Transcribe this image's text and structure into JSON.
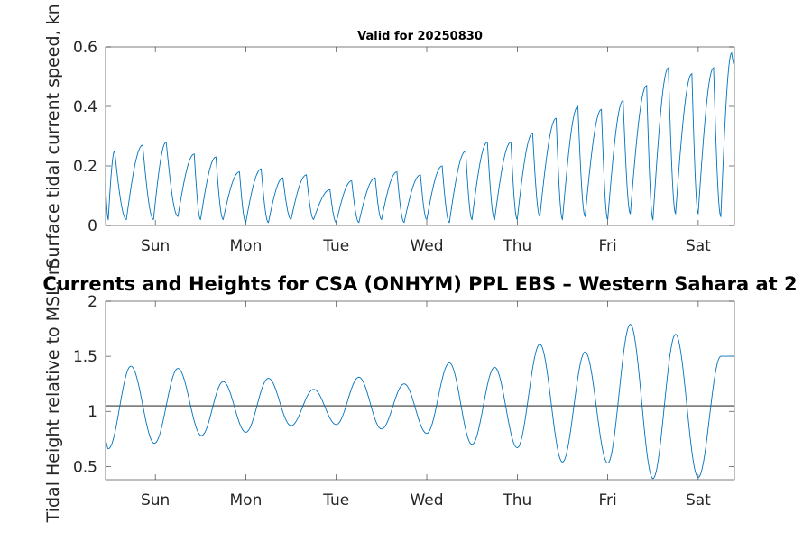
{
  "chart_data": [
    {
      "type": "line",
      "title": "Valid for 20250830",
      "xlabel": "",
      "ylabel": "Surface tidal current speed, kn",
      "ylim": [
        0,
        0.6
      ],
      "xlim": [
        -0.55,
        6.4
      ],
      "yticks": [
        0,
        0.2,
        0.4,
        0.6
      ],
      "ytick_labels": [
        "0",
        "0.2",
        "0.4",
        "0.6"
      ],
      "xticks": [
        0,
        1,
        2,
        3,
        4,
        5,
        6
      ],
      "xtick_labels": [
        "Sun",
        "Mon",
        "Tue",
        "Wed",
        "Thu",
        "Fri",
        "Sat"
      ],
      "grid": false,
      "series": [
        {
          "color": "#0072bd",
          "peaks": [
            {
              "x": -0.45,
              "y": 0.25
            },
            {
              "x": -0.14,
              "y": 0.27
            },
            {
              "x": 0.12,
              "y": 0.28
            },
            {
              "x": 0.43,
              "y": 0.24
            },
            {
              "x": 0.67,
              "y": 0.23
            },
            {
              "x": 0.93,
              "y": 0.18
            },
            {
              "x": 1.17,
              "y": 0.19
            },
            {
              "x": 1.41,
              "y": 0.16
            },
            {
              "x": 1.67,
              "y": 0.17
            },
            {
              "x": 1.93,
              "y": 0.12
            },
            {
              "x": 2.17,
              "y": 0.15
            },
            {
              "x": 2.43,
              "y": 0.16
            },
            {
              "x": 2.67,
              "y": 0.18
            },
            {
              "x": 2.93,
              "y": 0.17
            },
            {
              "x": 3.17,
              "y": 0.2
            },
            {
              "x": 3.43,
              "y": 0.25
            },
            {
              "x": 3.67,
              "y": 0.28
            },
            {
              "x": 3.93,
              "y": 0.28
            },
            {
              "x": 4.17,
              "y": 0.31
            },
            {
              "x": 4.43,
              "y": 0.36
            },
            {
              "x": 4.67,
              "y": 0.4
            },
            {
              "x": 4.93,
              "y": 0.39
            },
            {
              "x": 5.17,
              "y": 0.42
            },
            {
              "x": 5.43,
              "y": 0.47
            },
            {
              "x": 5.67,
              "y": 0.53
            },
            {
              "x": 5.93,
              "y": 0.51
            },
            {
              "x": 6.17,
              "y": 0.53
            },
            {
              "x": 6.37,
              "y": 0.58
            }
          ],
          "troughs": [
            {
              "x": -0.52,
              "y": 0.02
            },
            {
              "x": -0.32,
              "y": 0.02
            },
            {
              "x": -0.02,
              "y": 0.02
            },
            {
              "x": 0.25,
              "y": 0.03
            },
            {
              "x": 0.5,
              "y": 0.02
            },
            {
              "x": 0.75,
              "y": 0.02
            },
            {
              "x": 1.0,
              "y": 0.01
            },
            {
              "x": 1.25,
              "y": 0.01
            },
            {
              "x": 1.5,
              "y": 0.02
            },
            {
              "x": 1.75,
              "y": 0.02
            },
            {
              "x": 2.0,
              "y": 0.01
            },
            {
              "x": 2.25,
              "y": 0.01
            },
            {
              "x": 2.5,
              "y": 0.02
            },
            {
              "x": 2.75,
              "y": 0.01
            },
            {
              "x": 3.0,
              "y": 0.02
            },
            {
              "x": 3.25,
              "y": 0.01
            },
            {
              "x": 3.5,
              "y": 0.02
            },
            {
              "x": 3.75,
              "y": 0.02
            },
            {
              "x": 4.0,
              "y": 0.02
            },
            {
              "x": 4.25,
              "y": 0.03
            },
            {
              "x": 4.5,
              "y": 0.02
            },
            {
              "x": 4.75,
              "y": 0.03
            },
            {
              "x": 5.0,
              "y": 0.02
            },
            {
              "x": 5.25,
              "y": 0.04
            },
            {
              "x": 5.5,
              "y": 0.02
            },
            {
              "x": 5.75,
              "y": 0.04
            },
            {
              "x": 6.0,
              "y": 0.04
            },
            {
              "x": 6.25,
              "y": 0.03
            }
          ]
        }
      ]
    },
    {
      "type": "line",
      "title": "Currents and Heights for CSA (ONHYM) PPL EBS  – Western Sahara at 2",
      "xlabel": "",
      "ylabel": "Tidal Height relative to MSL, m",
      "ylim": [
        0.38,
        2
      ],
      "xlim": [
        -0.55,
        6.4
      ],
      "yticks": [
        0.5,
        1,
        1.5,
        2
      ],
      "ytick_labels": [
        "0.5",
        "1",
        "1.5",
        "2"
      ],
      "xticks": [
        0,
        1,
        2,
        3,
        4,
        5,
        6
      ],
      "xtick_labels": [
        "Sun",
        "Mon",
        "Tue",
        "Wed",
        "Thu",
        "Fri",
        "Sat"
      ],
      "grid": false,
      "reference_line": {
        "y": 1.05,
        "color": "#000000"
      },
      "series": [
        {
          "color": "#0072bd",
          "extrema": [
            {
              "x": -0.55,
              "y": 0.73
            },
            {
              "x": -0.52,
              "y": 0.66
            },
            {
              "x": -0.27,
              "y": 1.41
            },
            {
              "x": -0.01,
              "y": 0.71
            },
            {
              "x": 0.25,
              "y": 1.39
            },
            {
              "x": 0.51,
              "y": 0.78
            },
            {
              "x": 0.75,
              "y": 1.27
            },
            {
              "x": 1.0,
              "y": 0.81
            },
            {
              "x": 1.25,
              "y": 1.3
            },
            {
              "x": 1.5,
              "y": 0.87
            },
            {
              "x": 1.75,
              "y": 1.2
            },
            {
              "x": 2.0,
              "y": 0.88
            },
            {
              "x": 2.25,
              "y": 1.31
            },
            {
              "x": 2.5,
              "y": 0.84
            },
            {
              "x": 2.75,
              "y": 1.25
            },
            {
              "x": 3.0,
              "y": 0.8
            },
            {
              "x": 3.25,
              "y": 1.44
            },
            {
              "x": 3.5,
              "y": 0.7
            },
            {
              "x": 3.75,
              "y": 1.4
            },
            {
              "x": 4.0,
              "y": 0.67
            },
            {
              "x": 4.25,
              "y": 1.61
            },
            {
              "x": 4.5,
              "y": 0.54
            },
            {
              "x": 4.75,
              "y": 1.54
            },
            {
              "x": 5.0,
              "y": 0.53
            },
            {
              "x": 5.25,
              "y": 1.79
            },
            {
              "x": 5.5,
              "y": 0.39
            },
            {
              "x": 5.75,
              "y": 1.7
            },
            {
              "x": 6.0,
              "y": 0.4
            },
            {
              "x": 6.25,
              "y": 1.5
            }
          ]
        }
      ]
    }
  ]
}
